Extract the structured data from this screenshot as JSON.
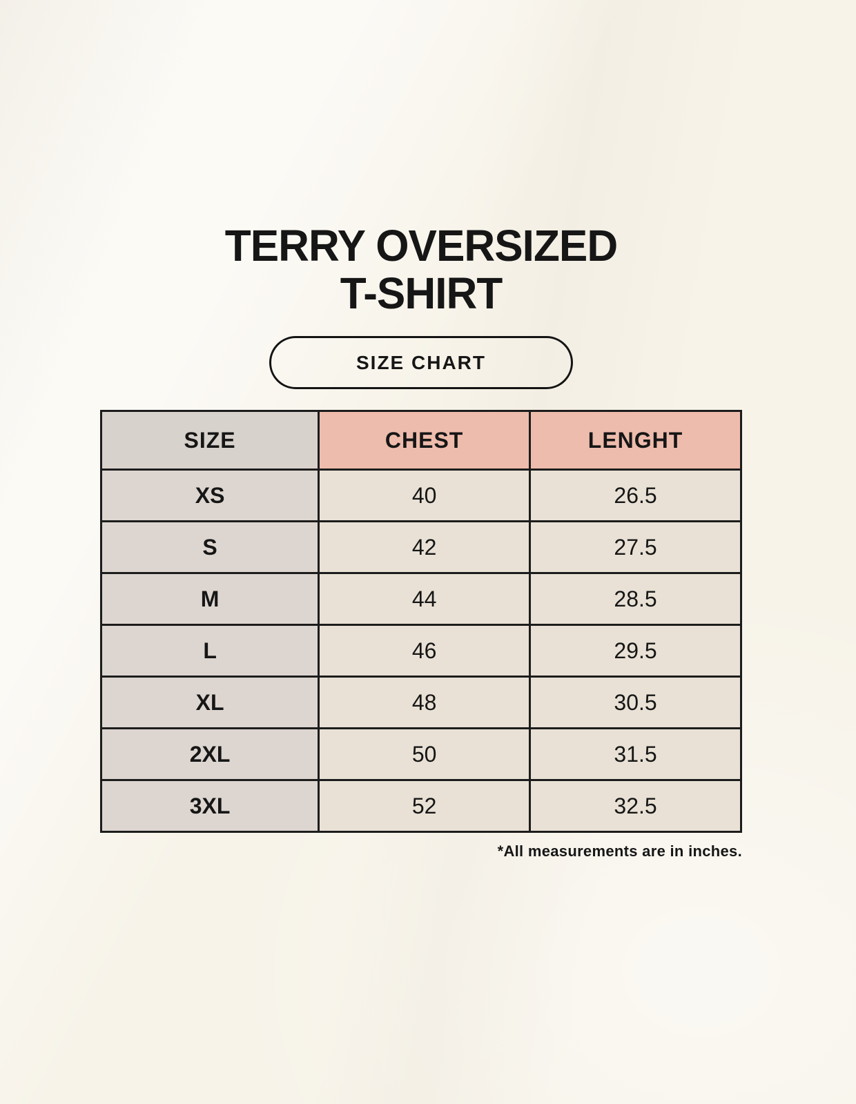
{
  "page": {
    "title_line1": "TERRY OVERSIZED",
    "title_line2": "T-SHIRT",
    "size_chart_label": "SIZE CHART"
  },
  "chart_data": {
    "type": "table",
    "title": "TERRY OVERSIZED T-SHIRT",
    "subtitle": "SIZE CHART",
    "columns": [
      "SIZE",
      "CHEST",
      "LENGHT"
    ],
    "rows": [
      [
        "XS",
        "40",
        "26.5"
      ],
      [
        "S",
        "42",
        "27.5"
      ],
      [
        "M",
        "44",
        "28.5"
      ],
      [
        "L",
        "46",
        "29.5"
      ],
      [
        "XL",
        "48",
        "30.5"
      ],
      [
        "2XL",
        "50",
        "31.5"
      ],
      [
        "3XL",
        "52",
        "32.5"
      ]
    ],
    "note": "*All measurements are in inches."
  },
  "colors": {
    "page_bg": "#f7f3e9",
    "size_col_header_bg": "#d8d2cc",
    "size_col_cell_bg": "#ddd6d0",
    "measure_header_bg": "#eebcac",
    "value_cell_bg": "#e9e1d5",
    "table_border": "#1c1c1c",
    "text": "#161616"
  }
}
